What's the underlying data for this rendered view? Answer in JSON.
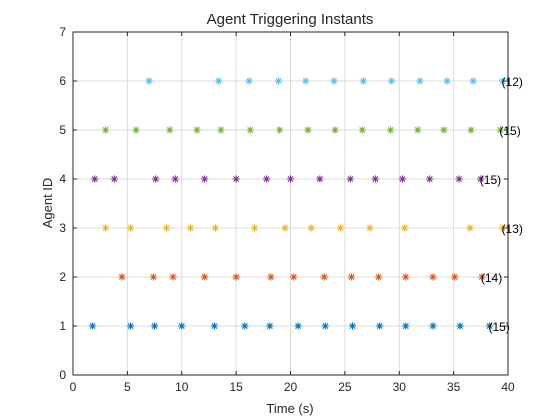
{
  "chart_data": {
    "type": "scatter",
    "title": "Agent Triggering Instants",
    "xlabel": "Time (s)",
    "ylabel": "Agent ID",
    "xlim": [
      0,
      40
    ],
    "ylim": [
      0,
      7
    ],
    "xticks": [
      "0",
      "5",
      "10",
      "15",
      "20",
      "25",
      "30",
      "35",
      "40"
    ],
    "yticks": [
      "0",
      "1",
      "2",
      "3",
      "4",
      "5",
      "6",
      "7"
    ],
    "grid": true,
    "marker": "asterisk",
    "series": [
      {
        "agent": 1,
        "color": "#0072BD",
        "count_label": "(15)",
        "x": [
          1.8,
          5.3,
          7.5,
          10.0,
          13.0,
          15.8,
          18.1,
          20.7,
          23.2,
          25.7,
          28.2,
          30.6,
          33.1,
          35.6,
          38.3
        ]
      },
      {
        "agent": 2,
        "color": "#D95319",
        "count_label": "(14)",
        "x": [
          4.5,
          7.4,
          9.2,
          12.1,
          15.0,
          18.2,
          20.3,
          23.1,
          25.6,
          28.1,
          30.6,
          33.1,
          35.1,
          37.6
        ]
      },
      {
        "agent": 3,
        "color": "#EDB120",
        "count_label": "(13)",
        "x": [
          3.0,
          5.3,
          8.6,
          10.8,
          13.1,
          16.7,
          19.5,
          21.9,
          24.6,
          27.3,
          30.5,
          36.5,
          39.5
        ]
      },
      {
        "agent": 4,
        "color": "#7E2F8E",
        "count_label": "(15)",
        "x": [
          2.0,
          3.8,
          7.6,
          9.4,
          12.1,
          15.0,
          17.8,
          20.0,
          22.7,
          25.5,
          27.8,
          30.3,
          32.8,
          35.5,
          37.5
        ]
      },
      {
        "agent": 5,
        "color": "#77AC30",
        "count_label": "(15)",
        "x": [
          3.0,
          5.8,
          8.9,
          11.4,
          13.6,
          16.3,
          19.0,
          21.6,
          24.1,
          26.6,
          29.2,
          31.7,
          34.1,
          36.6,
          39.3
        ]
      },
      {
        "agent": 6,
        "color": "#4DBEEE",
        "count_label": "(12)",
        "x": [
          7.0,
          13.4,
          16.2,
          18.9,
          21.4,
          24.0,
          26.7,
          29.3,
          31.9,
          34.4,
          36.8,
          39.5
        ]
      }
    ]
  }
}
